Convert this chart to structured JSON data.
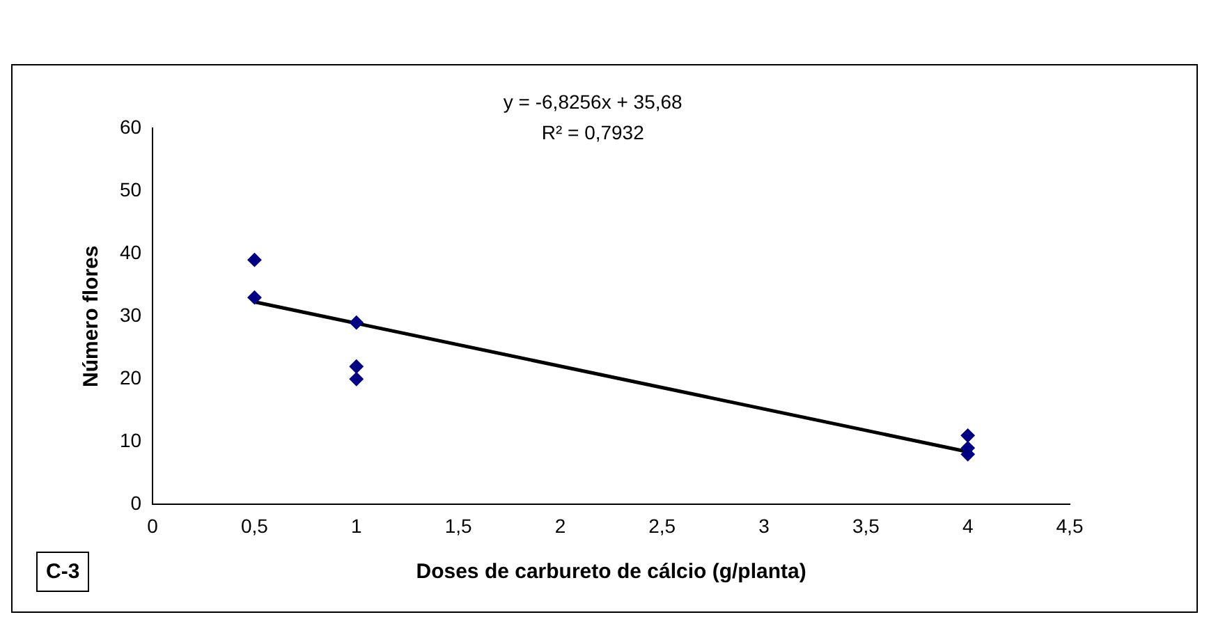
{
  "chart_data": {
    "type": "scatter",
    "xlabel": "Doses de carbureto de cálcio (g/planta)",
    "ylabel": "Número flores",
    "xlim": [
      0,
      4.5
    ],
    "xticks": [
      0,
      {
        "value": 0.5,
        "label": "0,5"
      },
      1,
      {
        "value": 1.5,
        "label": "1,5"
      },
      2,
      {
        "value": 2.5,
        "label": "2,5"
      },
      3,
      {
        "value": 3.5,
        "label": "3,5"
      },
      4,
      {
        "value": 4.5,
        "label": "4,5"
      }
    ],
    "ylim": [
      0,
      60
    ],
    "yticks": [
      0,
      10,
      20,
      30,
      40,
      50,
      60
    ],
    "grid": false,
    "legend": false,
    "series": [
      {
        "type": "scatter",
        "color": "#000080",
        "marker": "diamond",
        "x": [
          0.5,
          0.5,
          1,
          1,
          1,
          4,
          4,
          4
        ],
        "values": [
          39,
          33,
          29,
          22,
          20,
          11,
          9,
          8
        ]
      },
      {
        "type": "line",
        "color": "#000000",
        "marker": "none",
        "line_style": "solid",
        "x": [
          0.5,
          4
        ],
        "values": [
          32.3,
          8.4
        ]
      }
    ],
    "annotations": [
      "y = -6,8256x + 35,68",
      "R² = 0,7932",
      "C-3"
    ]
  }
}
